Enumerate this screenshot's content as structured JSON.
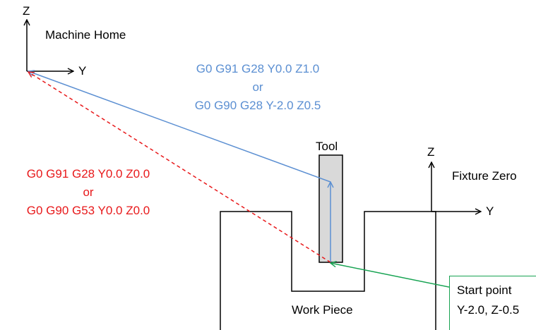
{
  "machine_home": {
    "label": "Machine Home",
    "z_axis": "Z",
    "y_axis": "Y"
  },
  "fixture_zero": {
    "label": "Fixture Zero",
    "z_axis": "Z",
    "y_axis": "Y"
  },
  "tool_label": "Tool",
  "work_piece_label": "Work Piece",
  "start_point": {
    "line1": "Start point",
    "line2": "Y-2.0, Z-0.5"
  },
  "blue_commands": {
    "line1": "G0 G91 G28 Y0.0 Z1.0",
    "line2": "or",
    "line3": "G0 G90 G28 Y-2.0 Z0.5"
  },
  "red_commands": {
    "line1": "G0 G91 G28 Y0.0 Z0.0",
    "line2": "or",
    "line3": "G0 G90 G53 Y0.0 Z0.0"
  },
  "colors": {
    "blue_path": "#5b8fd2",
    "red_path": "#e8191b",
    "green_path": "#17a352",
    "tool_fill": "#d9d9d9"
  }
}
